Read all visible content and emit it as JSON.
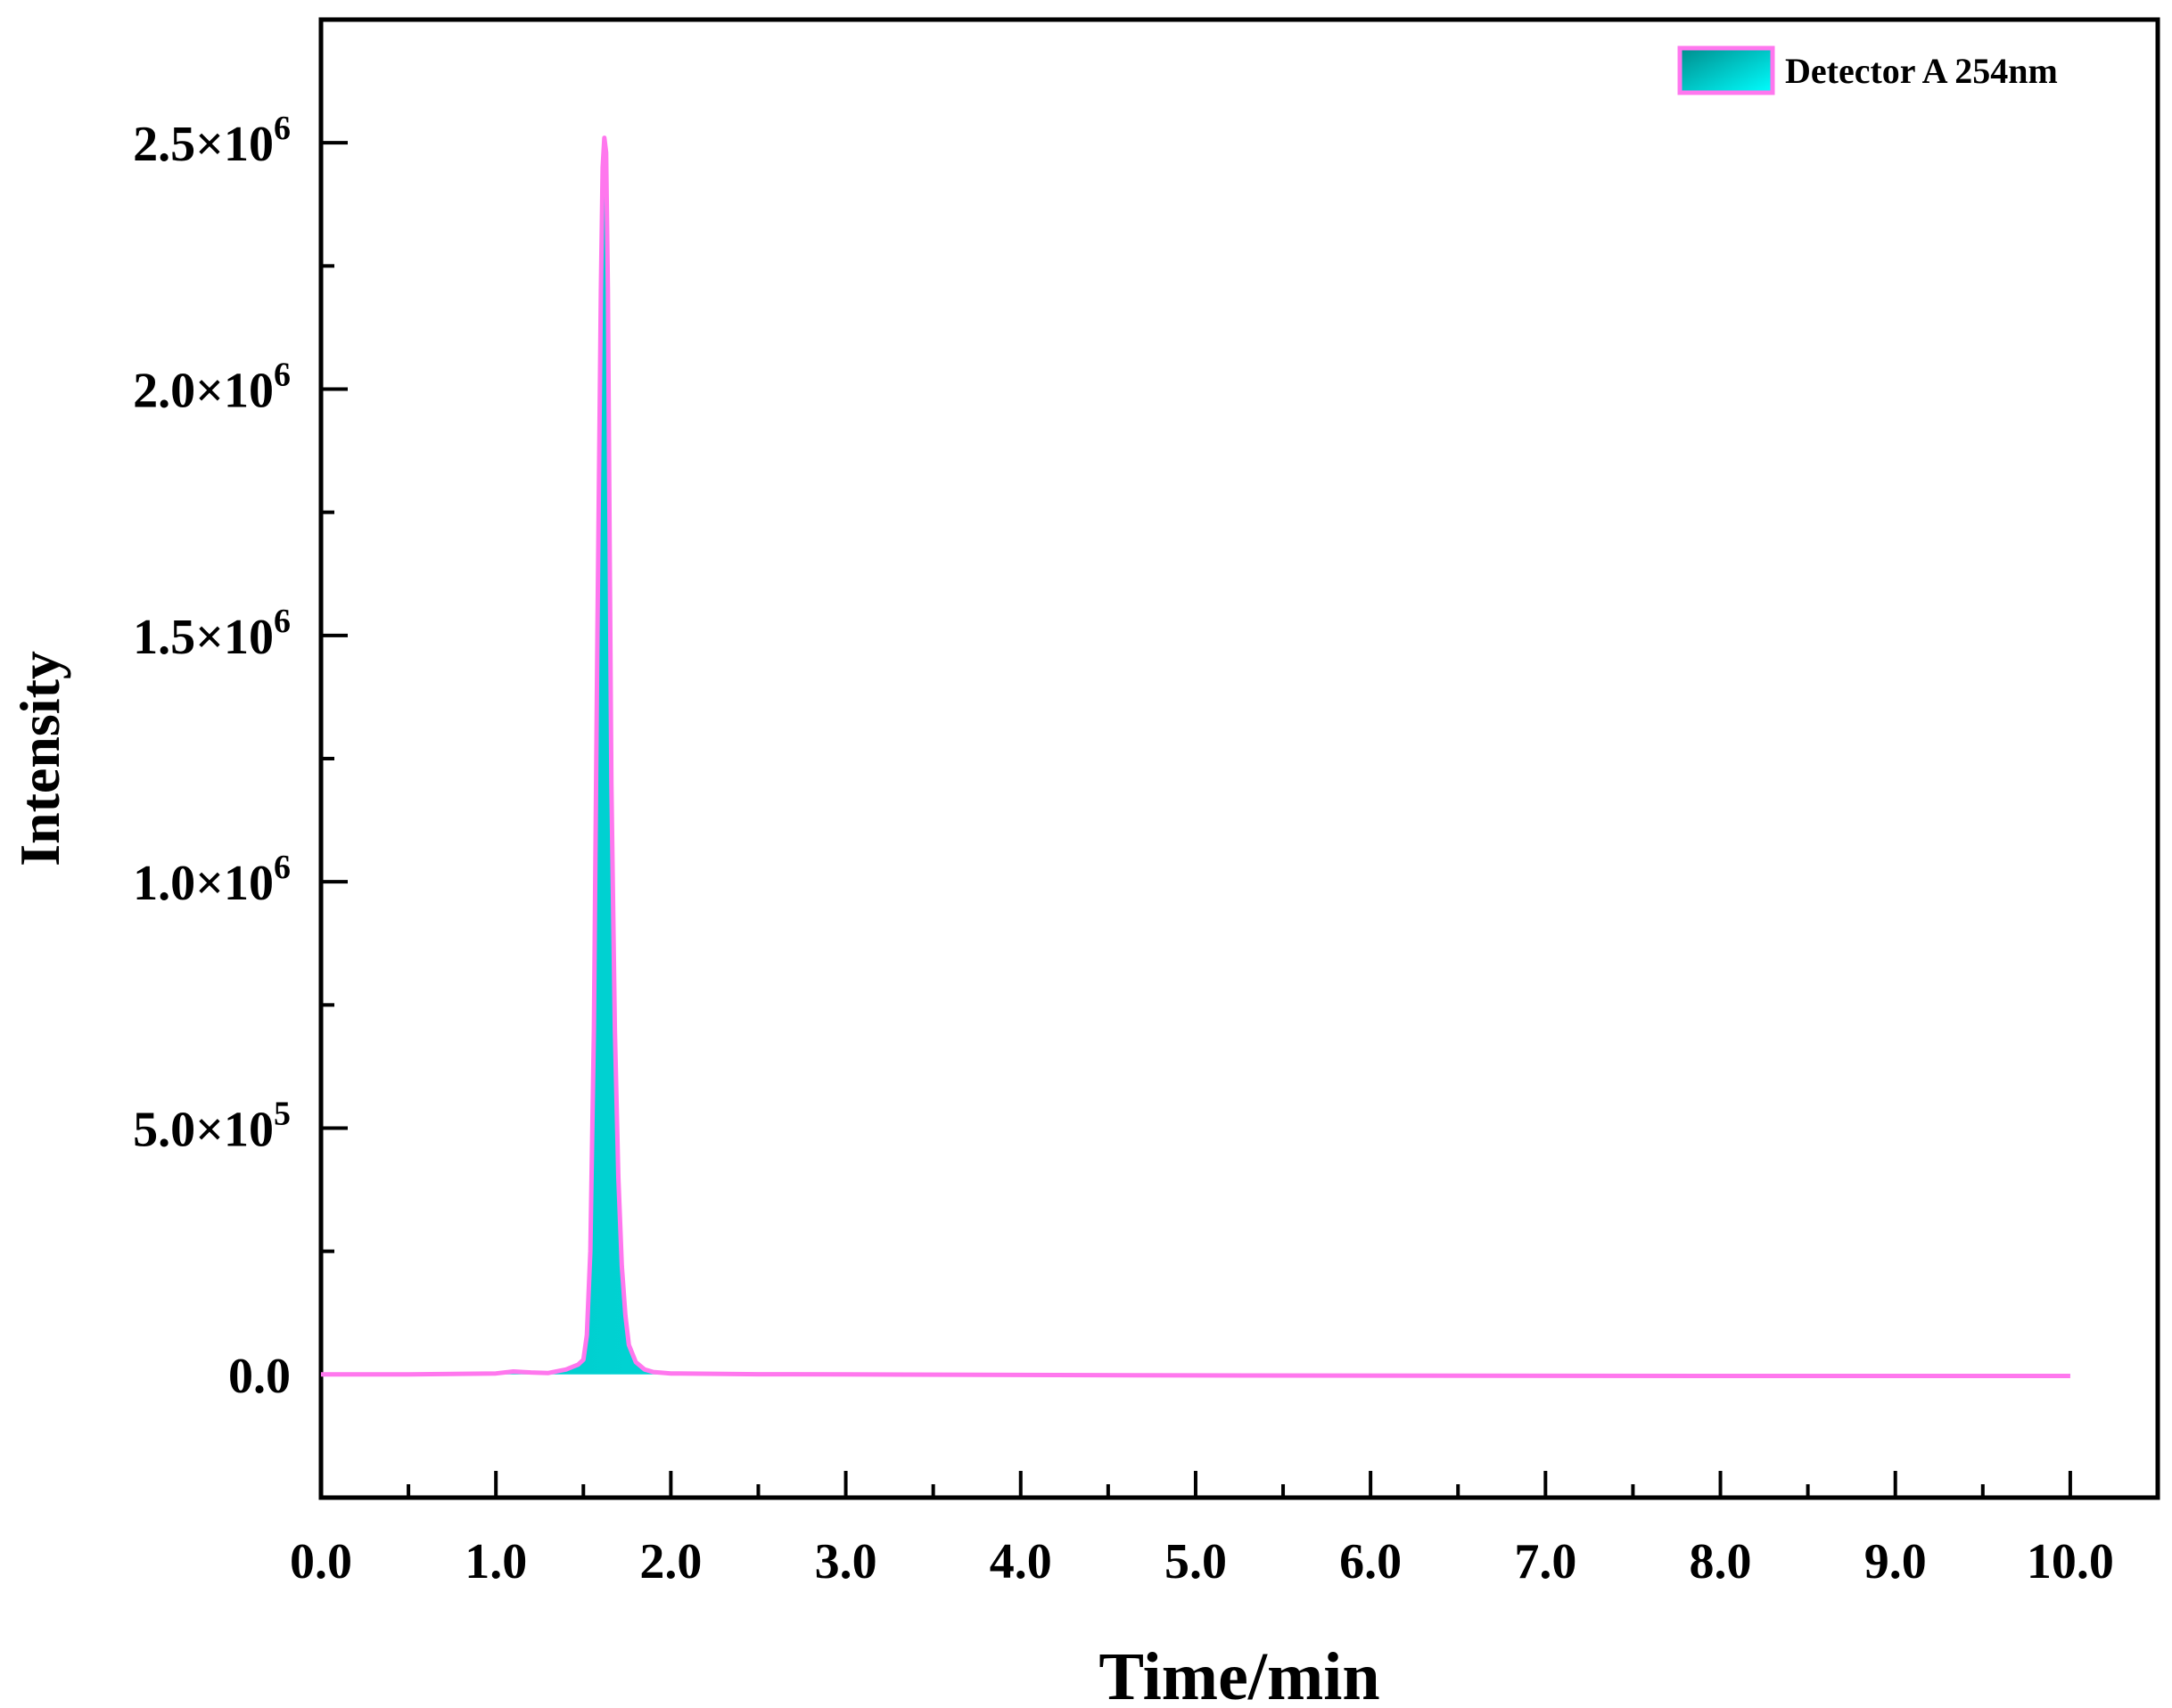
{
  "chart_data": {
    "type": "area",
    "title": "",
    "xlabel": "Time/min",
    "ylabel": "Intensity",
    "xlim": [
      0,
      10.5
    ],
    "ylim": [
      -250000,
      2750000
    ],
    "grid": false,
    "legend_position": "top-right",
    "x_ticks": [
      0,
      1,
      2,
      3,
      4,
      5,
      6,
      7,
      8,
      9,
      10
    ],
    "x_tick_labels": [
      "0.0",
      "1.0",
      "2.0",
      "3.0",
      "4.0",
      "5.0",
      "6.0",
      "7.0",
      "8.0",
      "9.0",
      "10.0"
    ],
    "y_ticks": [
      {
        "value": 0,
        "mantissa": "0.0",
        "exponent": ""
      },
      {
        "value": 500000,
        "mantissa": "5.0×10",
        "exponent": "5"
      },
      {
        "value": 1000000,
        "mantissa": "1.0×10",
        "exponent": "6"
      },
      {
        "value": 1500000,
        "mantissa": "1.5×10",
        "exponent": "6"
      },
      {
        "value": 2000000,
        "mantissa": "2.0×10",
        "exponent": "6"
      },
      {
        "value": 2500000,
        "mantissa": "2.5×10",
        "exponent": "6"
      }
    ],
    "series": [
      {
        "name": "Detector A 254nm",
        "line_color": "#ff77ee",
        "fill_colors": [
          "#00c8c8",
          "#00ffff"
        ],
        "x": [
          0,
          0.5,
          1.0,
          1.1,
          1.2,
          1.3,
          1.4,
          1.47,
          1.5,
          1.52,
          1.54,
          1.56,
          1.58,
          1.6,
          1.61,
          1.62,
          1.63,
          1.64,
          1.65,
          1.66,
          1.68,
          1.7,
          1.72,
          1.74,
          1.76,
          1.8,
          1.85,
          1.9,
          2.0,
          2.5,
          3.0,
          5.0,
          8.0,
          10.0
        ],
        "y": [
          0,
          0,
          2000,
          6000,
          4000,
          3000,
          10000,
          20000,
          30000,
          80000,
          250000,
          700000,
          1500000,
          2200000,
          2450000,
          2510000,
          2480000,
          2200000,
          1700000,
          1200000,
          700000,
          400000,
          220000,
          120000,
          60000,
          25000,
          10000,
          5000,
          2000,
          500,
          0,
          -2000,
          -3000,
          -3000
        ]
      }
    ]
  }
}
